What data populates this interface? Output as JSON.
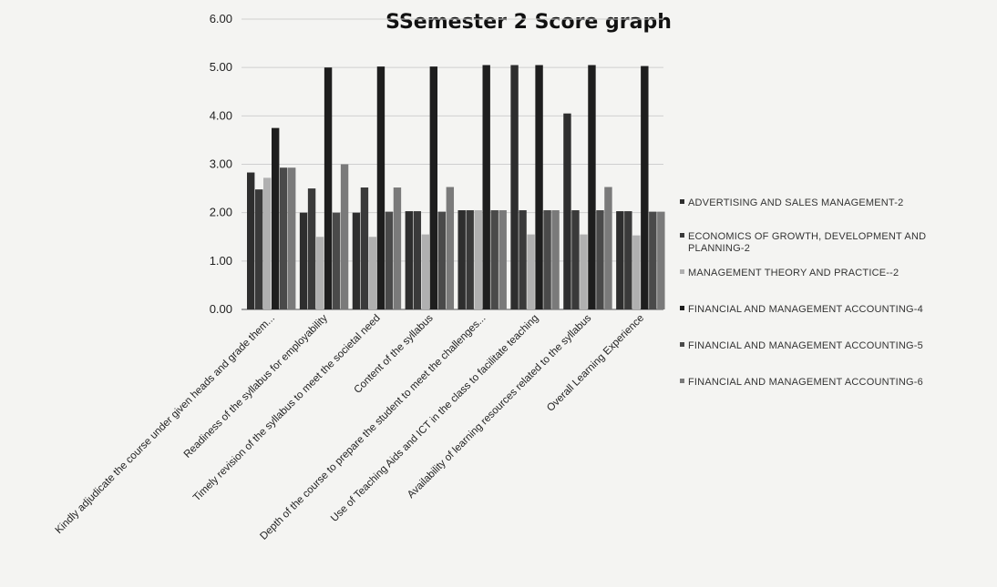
{
  "chart_data": {
    "type": "bar",
    "title": "SSemester 2 Score graph",
    "xlabel": "",
    "ylabel": "",
    "ylim": [
      0,
      6
    ],
    "y_ticks": [
      "0.00",
      "1.00",
      "2.00",
      "3.00",
      "4.00",
      "5.00",
      "6.00"
    ],
    "grid": true,
    "legend_position": "right",
    "categories": [
      "Kindly adjudicate the course under given heads and grade them...",
      "Readiness of the syllabus for employability",
      "Timely revision of the syllabus to meet the societal need",
      "Content of the syllabus",
      "Depth of the course to prepare the student to meet the challenges...",
      "Use of Teaching Aids and ICT in the class to facilitate teaching",
      "Availability of learning resources related to the syllabus",
      "Overall Learning Experience"
    ],
    "series": [
      {
        "name": "ADVERTISING AND SALES MANAGEMENT-2",
        "color": "#2e2e2e",
        "values": [
          2.83,
          2.0,
          2.0,
          2.03,
          2.05,
          5.05,
          4.05,
          2.03
        ]
      },
      {
        "name": "ECONOMICS OF GROWTH, DEVELOPMENT AND PLANNING-2",
        "color": "#3a3a3a",
        "values": [
          2.48,
          2.5,
          2.52,
          2.03,
          2.05,
          2.05,
          2.05,
          2.03
        ]
      },
      {
        "name": "MANAGEMENT THEORY AND PRACTICE--2",
        "color": "#b0b0b0",
        "values": [
          2.72,
          1.5,
          1.5,
          1.55,
          2.05,
          1.55,
          1.55,
          1.53
        ]
      },
      {
        "name": "FINANCIAL AND MANAGEMENT ACCOUNTING-4",
        "color": "#1e1e1e",
        "values": [
          3.75,
          5.0,
          5.02,
          5.02,
          5.05,
          5.05,
          5.05,
          5.03
        ]
      },
      {
        "name": "FINANCIAL AND MANAGEMENT ACCOUNTING-5",
        "color": "#4a4a4a",
        "values": [
          2.93,
          2.0,
          2.02,
          2.02,
          2.05,
          2.05,
          2.05,
          2.02
        ]
      },
      {
        "name": "FINANCIAL AND MANAGEMENT ACCOUNTING-6",
        "color": "#7a7a7a",
        "values": [
          2.93,
          3.0,
          2.52,
          2.53,
          2.05,
          2.05,
          2.53,
          2.02
        ]
      }
    ]
  }
}
